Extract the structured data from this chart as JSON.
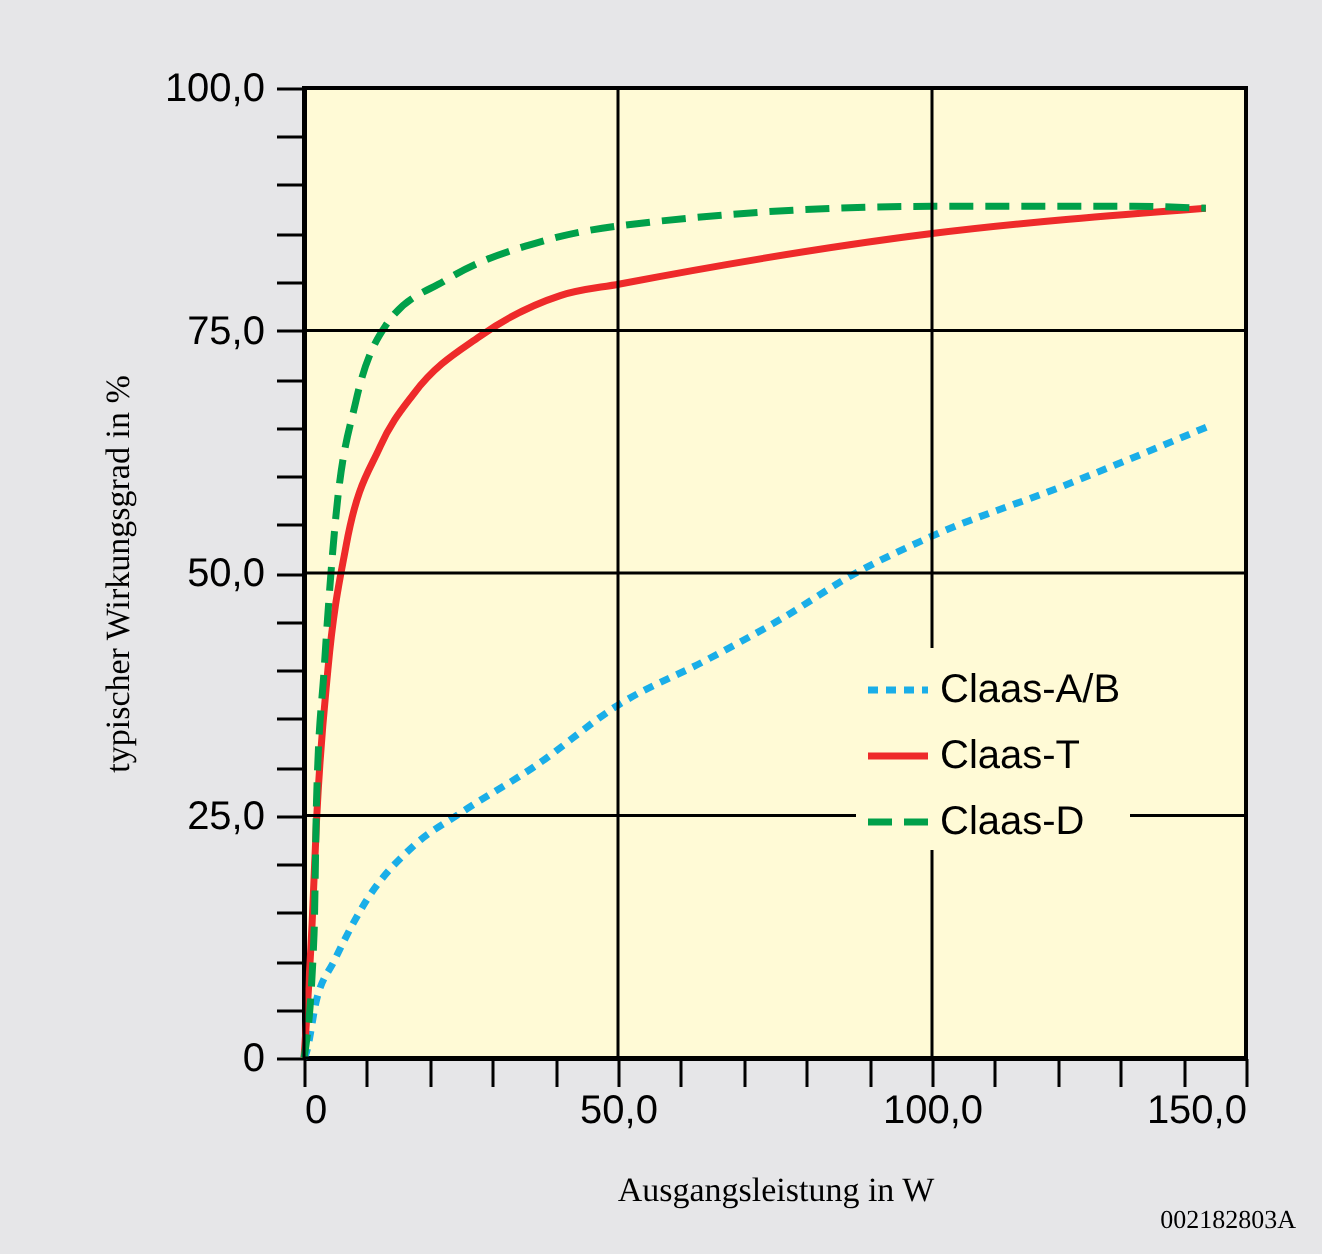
{
  "chart_data": {
    "type": "line",
    "xlabel": "Ausgangsleistung in W",
    "ylabel": "typischer Wirkungsgrad in %",
    "annotations": [
      "002182803A"
    ],
    "xlim": [
      0,
      150
    ],
    "ylim": [
      0,
      100
    ],
    "xticks": [
      0,
      {
        "value": 10,
        "label": null
      },
      {
        "value": 20,
        "label": null
      },
      {
        "value": 30,
        "label": null
      },
      {
        "value": 40,
        "label": null
      },
      {
        "value": 50,
        "label": "50,0"
      },
      {
        "value": 60,
        "label": null
      },
      {
        "value": 70,
        "label": null
      },
      {
        "value": 80,
        "label": null
      },
      {
        "value": 90,
        "label": null
      },
      {
        "value": 100,
        "label": "100,0"
      },
      {
        "value": 110,
        "label": null
      },
      {
        "value": 120,
        "label": null
      },
      {
        "value": 130,
        "label": null
      },
      {
        "value": 140,
        "label": null
      },
      {
        "value": 150,
        "label": "150,0"
      }
    ],
    "yticks": [
      0,
      {
        "value": 5,
        "label": null
      },
      {
        "value": 10,
        "label": null
      },
      {
        "value": 15,
        "label": null
      },
      {
        "value": 20,
        "label": null
      },
      {
        "value": 25,
        "label": "25,0"
      },
      {
        "value": 30,
        "label": null
      },
      {
        "value": 35,
        "label": null
      },
      {
        "value": 40,
        "label": null
      },
      {
        "value": 45,
        "label": null
      },
      {
        "value": 50,
        "label": "50,0"
      },
      {
        "value": 55,
        "label": null
      },
      {
        "value": 60,
        "label": null
      },
      {
        "value": 65,
        "label": null
      },
      {
        "value": 70,
        "label": null
      },
      {
        "value": 75,
        "label": "75,0"
      },
      {
        "value": 80,
        "label": null
      },
      {
        "value": 85,
        "label": null
      },
      {
        "value": 90,
        "label": null
      },
      {
        "value": 95,
        "label": null
      },
      {
        "value": 100,
        "label": "100,0"
      }
    ],
    "grid": true,
    "legend": "bottom right",
    "marker": "none",
    "series": [
      {
        "name": "Claas-A/B",
        "color": "#1aaee8",
        "line_style": "dotted",
        "x": [
          0,
          0.3,
          2,
          4.8,
          10,
          17.5,
          24.8,
          36.6,
          50.3,
          64,
          75.8,
          87.6,
          100,
          121,
          144.3
        ],
        "values": [
          0,
          0.4,
          6,
          10,
          16.3,
          21.9,
          25.2,
          30,
          36.5,
          41,
          45.2,
          49.9,
          53.8,
          59,
          65.2
        ]
      },
      {
        "name": "Claas-T",
        "color": "#ee2a2a",
        "line_style": "solid",
        "x": [
          0,
          1.3,
          2,
          3.8,
          6.7,
          12.1,
          17.5,
          28,
          40.8,
          50.3,
          100,
          143.6
        ],
        "values": [
          0,
          14,
          24.5,
          40,
          52.8,
          63,
          68.5,
          74.4,
          78.6,
          79.8,
          85,
          87.6
        ]
      },
      {
        "name": "Claas-D",
        "color": "#00a04a",
        "line_style": "dashed",
        "x": [
          0,
          1.6,
          2,
          3.2,
          5.1,
          8.3,
          13,
          22.6,
          38.5,
          50.3,
          100,
          132,
          143.6
        ],
        "values": [
          0,
          12.8,
          26.6,
          40,
          56,
          67.8,
          75.5,
          80.2,
          84.3,
          85.8,
          87.8,
          87.8,
          87.6
        ]
      }
    ]
  }
}
